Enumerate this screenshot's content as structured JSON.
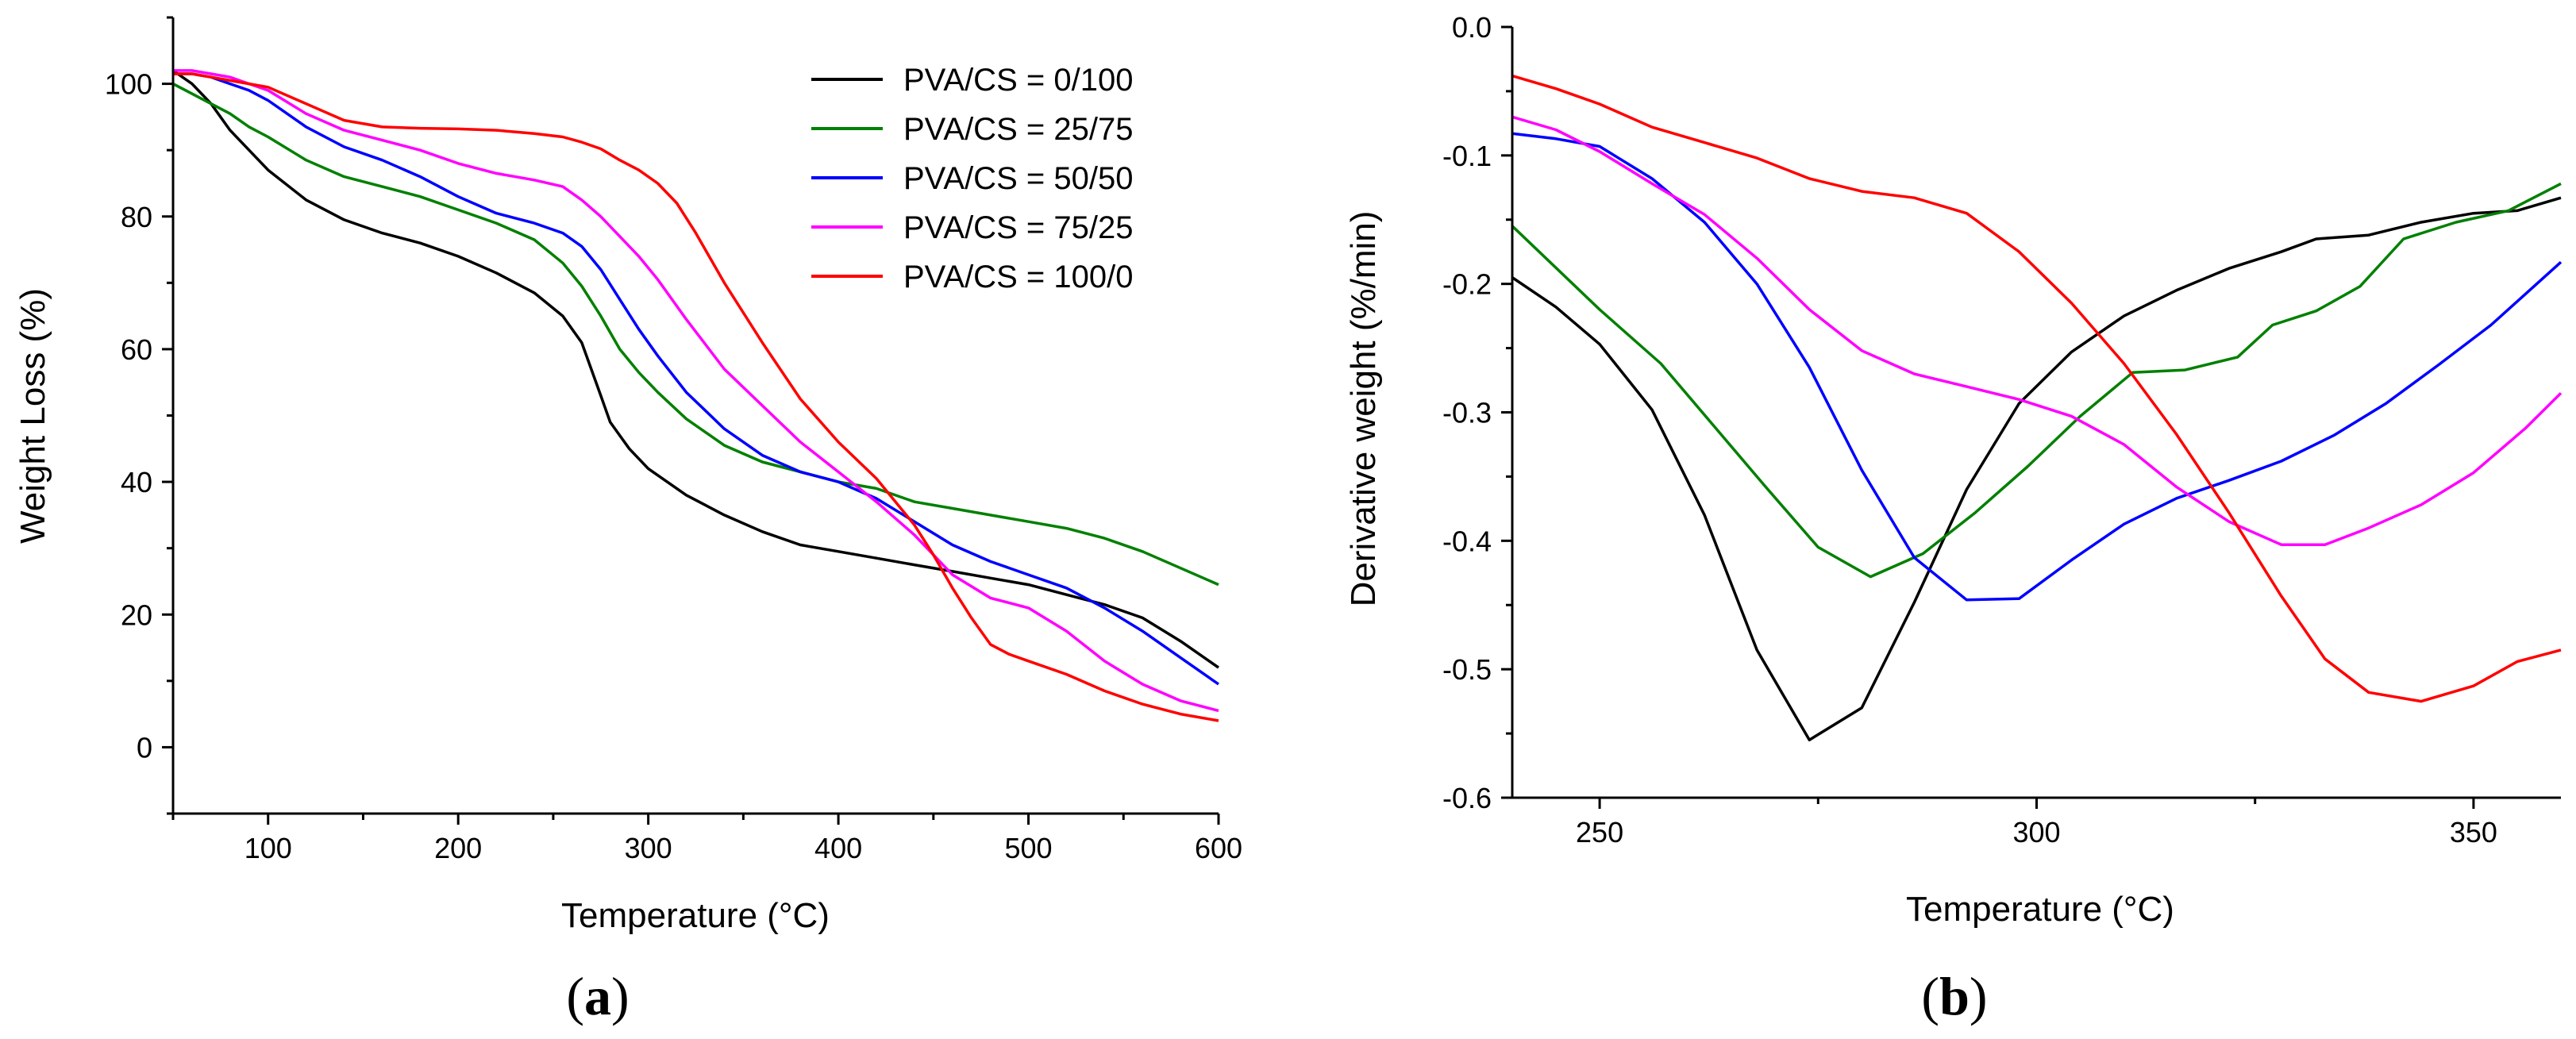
{
  "figure_labels": {
    "a_open": "(",
    "a_letter": "a",
    "a_close": ")",
    "b_open": "(",
    "b_letter": "b",
    "b_close": ")"
  },
  "chart_data": [
    {
      "type": "line",
      "panel": "a",
      "title": "",
      "xlabel": "Temperature (°C)",
      "ylabel": "Weight Loss (%)",
      "xlim": [
        50,
        600
      ],
      "ylim": [
        -10,
        110
      ],
      "xticks": [
        100,
        200,
        300,
        400,
        500,
        600
      ],
      "xticks_minor": [
        50,
        150,
        250,
        350,
        450,
        550
      ],
      "yticks": [
        0,
        20,
        40,
        60,
        80,
        100
      ],
      "yticks_minor": [
        -10,
        10,
        30,
        50,
        70,
        90,
        110
      ],
      "legend_position": "top-right",
      "series": [
        {
          "name": "PVA/CS = 0/100",
          "color": "#000000",
          "x": [
            50,
            60,
            70,
            80,
            90,
            100,
            120,
            140,
            160,
            180,
            200,
            220,
            240,
            255,
            265,
            270,
            275,
            280,
            285,
            290,
            300,
            320,
            340,
            360,
            380,
            400,
            420,
            440,
            460,
            480,
            500,
            520,
            540,
            560,
            580,
            600
          ],
          "y": [
            102,
            100,
            97,
            93,
            90,
            87,
            82.5,
            79.5,
            77.5,
            76,
            74,
            71.5,
            68.5,
            65,
            61,
            57,
            53,
            49,
            47,
            45,
            42,
            38,
            35,
            32.5,
            30.5,
            29.5,
            28.5,
            27.5,
            26.5,
            25.5,
            24.5,
            23,
            21.5,
            19.5,
            16,
            12
          ]
        },
        {
          "name": "PVA/CS = 25/75",
          "color": "#008000",
          "x": [
            50,
            60,
            70,
            80,
            90,
            100,
            120,
            140,
            160,
            180,
            200,
            220,
            240,
            255,
            265,
            275,
            285,
            295,
            305,
            320,
            340,
            360,
            380,
            400,
            420,
            440,
            460,
            480,
            500,
            520,
            540,
            560,
            580,
            600
          ],
          "y": [
            100,
            98.5,
            97,
            95.5,
            93.5,
            92,
            88.5,
            86,
            84.5,
            83,
            81,
            79,
            76.5,
            73,
            69.5,
            65,
            60,
            56.5,
            53.5,
            49.5,
            45.5,
            43,
            41.5,
            40,
            39,
            37,
            36,
            35,
            34,
            33,
            31.5,
            29.5,
            27,
            24.5
          ]
        },
        {
          "name": "PVA/CS = 50/50",
          "color": "#0000ff",
          "x": [
            50,
            60,
            70,
            80,
            90,
            100,
            120,
            140,
            160,
            180,
            200,
            220,
            240,
            255,
            265,
            275,
            285,
            295,
            305,
            320,
            340,
            360,
            380,
            400,
            420,
            440,
            460,
            480,
            500,
            520,
            540,
            560,
            580,
            600
          ],
          "y": [
            101.5,
            101.5,
            101,
            100,
            99,
            97.5,
            93.5,
            90.5,
            88.5,
            86,
            83,
            80.5,
            79,
            77.5,
            75.5,
            72,
            67.5,
            63,
            59,
            53.5,
            48,
            44,
            41.5,
            40,
            37.5,
            34,
            30.5,
            28,
            26,
            24,
            21,
            17.5,
            13.5,
            9.5
          ]
        },
        {
          "name": "PVA/CS = 75/25",
          "color": "#ff00ff",
          "x": [
            50,
            60,
            70,
            80,
            90,
            100,
            120,
            140,
            160,
            180,
            200,
            220,
            240,
            255,
            265,
            275,
            285,
            295,
            305,
            320,
            340,
            360,
            380,
            400,
            420,
            440,
            460,
            480,
            500,
            520,
            540,
            560,
            580,
            600
          ],
          "y": [
            102,
            102,
            101.5,
            101,
            100,
            99,
            95.5,
            93,
            91.5,
            90,
            88,
            86.5,
            85.5,
            84.5,
            82.5,
            80,
            77,
            74,
            70.5,
            64.5,
            57,
            51.5,
            46,
            41.5,
            37,
            32,
            26,
            22.5,
            21,
            17.5,
            13,
            9.5,
            7,
            5.5
          ]
        },
        {
          "name": "PVA/CS = 100/0",
          "color": "#ff0000",
          "x": [
            50,
            60,
            70,
            80,
            90,
            100,
            120,
            140,
            160,
            180,
            200,
            220,
            240,
            255,
            265,
            275,
            285,
            295,
            305,
            315,
            325,
            340,
            360,
            380,
            400,
            420,
            440,
            450,
            460,
            470,
            480,
            490,
            500,
            520,
            540,
            560,
            580,
            600
          ],
          "y": [
            101.5,
            101.5,
            101,
            100.5,
            100,
            99.5,
            97,
            94.5,
            93.5,
            93.3,
            93.2,
            93,
            92.5,
            92,
            91.2,
            90.2,
            88.5,
            87,
            85,
            82,
            77.5,
            70,
            61,
            52.5,
            46,
            40.5,
            33.5,
            29,
            24,
            19.5,
            15.5,
            14,
            13,
            11,
            8.5,
            6.5,
            5,
            4
          ]
        }
      ]
    },
    {
      "type": "line",
      "panel": "b",
      "title": "",
      "xlabel": "Temperature (°C)",
      "ylabel": "Derivative weight (%/min)",
      "xlim": [
        240,
        360
      ],
      "ylim": [
        -0.6,
        0.0
      ],
      "xticks": [
        250,
        300,
        350
      ],
      "xticks_minor": [
        275,
        325
      ],
      "yticks": [
        0.0,
        -0.1,
        -0.2,
        -0.3,
        -0.4,
        -0.5,
        -0.6
      ],
      "yticks_minor": [
        -0.05,
        -0.15,
        -0.25,
        -0.35,
        -0.45,
        -0.55
      ],
      "series": [
        {
          "name": "PVA/CS = 0/100",
          "color": "#000000",
          "x": [
            240,
            245,
            250,
            256,
            262,
            268,
            274,
            280,
            286,
            292,
            298,
            304,
            310,
            316,
            322,
            328,
            332,
            338,
            344,
            350,
            355,
            360
          ],
          "y": [
            -0.195,
            -0.218,
            -0.247,
            -0.298,
            -0.38,
            -0.485,
            -0.555,
            -0.53,
            -0.448,
            -0.36,
            -0.293,
            -0.253,
            -0.225,
            -0.205,
            -0.188,
            -0.175,
            -0.165,
            -0.162,
            -0.152,
            -0.145,
            -0.143,
            -0.133
          ]
        },
        {
          "name": "PVA/CS = 25/75",
          "color": "#008000",
          "x": [
            240,
            250,
            257,
            263,
            269,
            275,
            281,
            287,
            293,
            299,
            305,
            311,
            317,
            323,
            327,
            332,
            337,
            342,
            348,
            354,
            360
          ],
          "y": [
            -0.155,
            -0.22,
            -0.262,
            -0.31,
            -0.358,
            -0.405,
            -0.428,
            -0.41,
            -0.378,
            -0.342,
            -0.303,
            -0.269,
            -0.267,
            -0.257,
            -0.232,
            -0.221,
            -0.202,
            -0.165,
            -0.152,
            -0.143,
            -0.122
          ]
        },
        {
          "name": "PVA/CS = 50/50",
          "color": "#0000ff",
          "x": [
            240,
            245,
            250,
            256,
            262,
            268,
            274,
            280,
            286,
            292,
            298,
            304,
            310,
            316,
            322,
            328,
            334,
            340,
            346,
            352,
            360
          ],
          "y": [
            -0.083,
            -0.087,
            -0.093,
            -0.118,
            -0.152,
            -0.2,
            -0.265,
            -0.345,
            -0.413,
            -0.446,
            -0.445,
            -0.415,
            -0.387,
            -0.367,
            -0.353,
            -0.338,
            -0.318,
            -0.293,
            -0.263,
            -0.232,
            -0.183
          ]
        },
        {
          "name": "PVA/CS = 75/25",
          "color": "#ff00ff",
          "x": [
            240,
            245,
            250,
            256,
            262,
            268,
            274,
            280,
            286,
            292,
            298,
            304,
            310,
            316,
            322,
            328,
            333,
            338,
            344,
            350,
            356,
            360
          ],
          "y": [
            -0.07,
            -0.08,
            -0.097,
            -0.122,
            -0.146,
            -0.18,
            -0.22,
            -0.252,
            -0.27,
            -0.28,
            -0.29,
            -0.303,
            -0.325,
            -0.358,
            -0.385,
            -0.403,
            -0.403,
            -0.39,
            -0.372,
            -0.347,
            -0.312,
            -0.285
          ]
        },
        {
          "name": "PVA/CS = 100/0",
          "color": "#ff0000",
          "x": [
            240,
            245,
            250,
            256,
            262,
            268,
            274,
            280,
            286,
            292,
            298,
            304,
            310,
            316,
            322,
            328,
            333,
            338,
            344,
            350,
            355,
            360
          ],
          "y": [
            -0.038,
            -0.048,
            -0.06,
            -0.078,
            -0.09,
            -0.102,
            -0.118,
            -0.128,
            -0.133,
            -0.145,
            -0.175,
            -0.215,
            -0.262,
            -0.317,
            -0.378,
            -0.443,
            -0.492,
            -0.518,
            -0.525,
            -0.513,
            -0.494,
            -0.485
          ]
        }
      ]
    }
  ]
}
